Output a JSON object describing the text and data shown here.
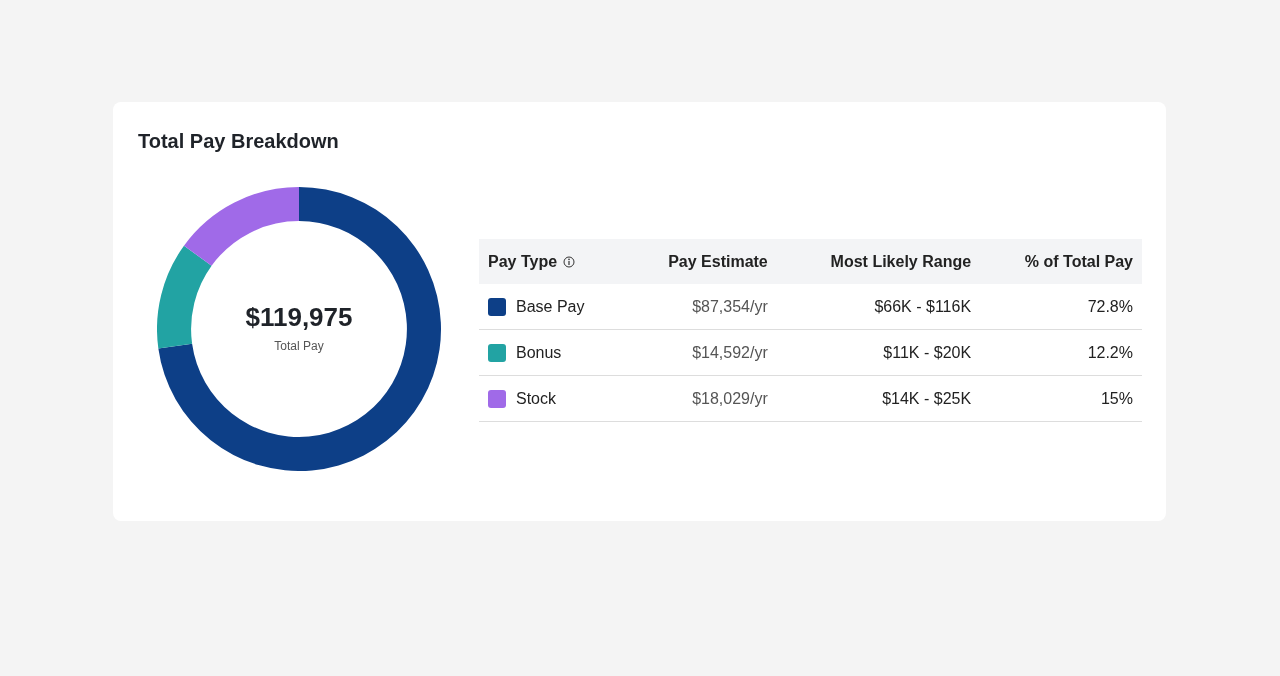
{
  "chart_data": {
    "type": "donut",
    "title": "Total Pay Breakdown",
    "categories": [
      "Base Pay",
      "Bonus",
      "Stock"
    ],
    "values": [
      87354,
      14592,
      18029
    ],
    "colors": [
      "#0d3f87",
      "#22a3a3",
      "#a06ae8"
    ],
    "value_labels": [
      "$87,354/yr",
      "$14,592/yr",
      "$18,029/yr"
    ],
    "legend": "right",
    "annotations": [
      "$119,975",
      "Total Pay",
      "Pay Type",
      "Pay Estimate",
      "Most Likely Range",
      "% of Total Pay",
      "$66K - $116K",
      "$11K - $20K",
      "$14K - $25K",
      "72.8%",
      "12.2%",
      "15%"
    ]
  }
}
